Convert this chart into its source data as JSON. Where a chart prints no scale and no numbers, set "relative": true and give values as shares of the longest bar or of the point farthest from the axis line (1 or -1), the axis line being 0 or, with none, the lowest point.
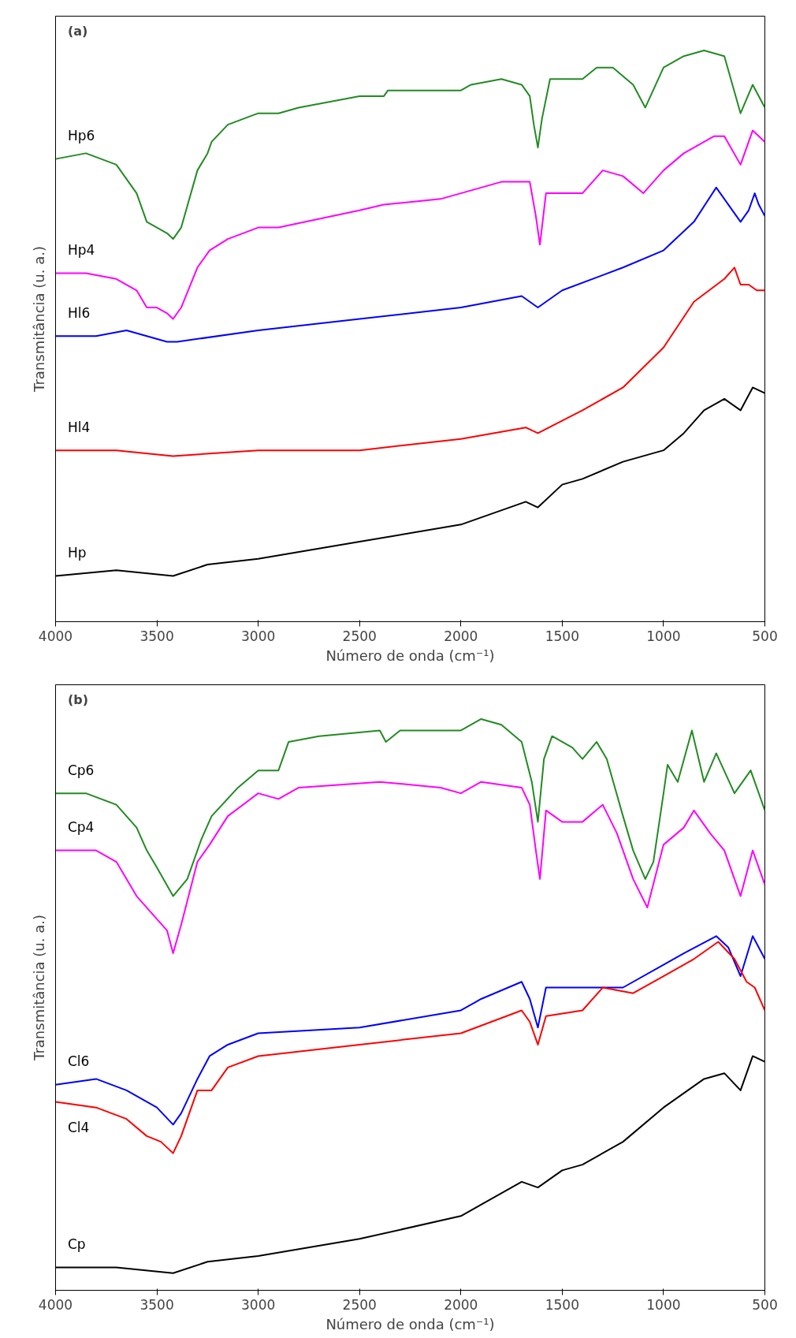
{
  "chart_data": [
    {
      "type": "line",
      "relative": true,
      "xlabel": "Número de onda (cm⁻¹)",
      "ylabel": "Transmitância (u. a.)",
      "annotations": [
        "(a)"
      ],
      "xlim": [
        4000,
        500
      ],
      "xticks": [
        4000,
        3500,
        3000,
        2500,
        2000,
        1500,
        1000,
        500
      ],
      "tick_labels": "x",
      "grid": false,
      "legend": false,
      "marker": "none",
      "line_style": "solid",
      "series": [
        {
          "name": "Hp6",
          "color": "#228b22",
          "x": [
            4000,
            3850,
            3700,
            3600,
            3550,
            3500,
            3450,
            3420,
            3380,
            3300,
            3250,
            3230,
            3150,
            3000,
            2900,
            2800,
            2500,
            2380,
            2360,
            2100,
            2000,
            1950,
            1800,
            1700,
            1660,
            1640,
            1620,
            1600,
            1560,
            1500,
            1400,
            1330,
            1250,
            1150,
            1090,
            1000,
            900,
            800,
            700,
            620,
            560,
            500
          ],
          "values": [
            0.81,
            0.82,
            0.8,
            0.75,
            0.7,
            0.69,
            0.68,
            0.67,
            0.69,
            0.79,
            0.82,
            0.84,
            0.87,
            0.89,
            0.89,
            0.9,
            0.92,
            0.92,
            0.93,
            0.93,
            0.93,
            0.94,
            0.95,
            0.94,
            0.92,
            0.87,
            0.83,
            0.88,
            0.95,
            0.95,
            0.95,
            0.97,
            0.97,
            0.94,
            0.9,
            0.97,
            0.99,
            1.0,
            0.99,
            0.89,
            0.94,
            0.9
          ]
        },
        {
          "name": "Hp4",
          "color": "#ff00ff",
          "x": [
            4000,
            3850,
            3700,
            3600,
            3550,
            3500,
            3450,
            3420,
            3380,
            3300,
            3240,
            3150,
            3000,
            2900,
            2500,
            2380,
            2100,
            2000,
            1800,
            1700,
            1660,
            1630,
            1610,
            1580,
            1500,
            1400,
            1300,
            1200,
            1100,
            1000,
            900,
            750,
            700,
            620,
            560,
            500
          ],
          "values": [
            0.61,
            0.61,
            0.6,
            0.58,
            0.55,
            0.55,
            0.54,
            0.53,
            0.55,
            0.62,
            0.65,
            0.67,
            0.69,
            0.69,
            0.72,
            0.73,
            0.74,
            0.75,
            0.77,
            0.77,
            0.77,
            0.71,
            0.66,
            0.75,
            0.75,
            0.75,
            0.79,
            0.78,
            0.75,
            0.79,
            0.82,
            0.85,
            0.85,
            0.8,
            0.86,
            0.84
          ]
        },
        {
          "name": "Hl6",
          "color": "#0000ff",
          "x": [
            4000,
            3800,
            3650,
            3550,
            3450,
            3400,
            3000,
            2500,
            2000,
            1700,
            1620,
            1500,
            1200,
            1000,
            850,
            740,
            680,
            620,
            580,
            550,
            530,
            500
          ],
          "values": [
            0.5,
            0.5,
            0.51,
            0.5,
            0.49,
            0.49,
            0.51,
            0.53,
            0.55,
            0.57,
            0.55,
            0.58,
            0.62,
            0.65,
            0.7,
            0.76,
            0.73,
            0.7,
            0.72,
            0.75,
            0.73,
            0.71
          ]
        },
        {
          "name": "Hl4",
          "color": "#ff0000",
          "x": [
            4000,
            3700,
            3420,
            3000,
            2500,
            2000,
            1680,
            1620,
            1400,
            1200,
            1000,
            850,
            700,
            650,
            620,
            580,
            540,
            500
          ],
          "values": [
            0.3,
            0.3,
            0.29,
            0.3,
            0.3,
            0.32,
            0.34,
            0.33,
            0.37,
            0.41,
            0.48,
            0.56,
            0.6,
            0.62,
            0.59,
            0.59,
            0.58,
            0.58
          ]
        },
        {
          "name": "Hp",
          "color": "#000000",
          "x": [
            4000,
            3700,
            3420,
            3250,
            3000,
            2500,
            2000,
            1680,
            1620,
            1500,
            1400,
            1200,
            1000,
            900,
            800,
            700,
            620,
            560,
            500
          ],
          "values": [
            0.08,
            0.09,
            0.08,
            0.1,
            0.11,
            0.14,
            0.17,
            0.21,
            0.2,
            0.24,
            0.25,
            0.28,
            0.3,
            0.33,
            0.37,
            0.39,
            0.37,
            0.41,
            0.4
          ]
        }
      ]
    },
    {
      "type": "line",
      "relative": true,
      "xlabel": "Número de onda (cm⁻¹)",
      "ylabel": "Transmitância (u. a.)",
      "annotations": [
        "(b)"
      ],
      "xlim": [
        4000,
        500
      ],
      "xticks": [
        4000,
        3500,
        3000,
        2500,
        2000,
        1500,
        1000,
        500
      ],
      "tick_labels": "x",
      "grid": false,
      "legend": false,
      "marker": "none",
      "line_style": "solid",
      "series": [
        {
          "name": "Cp6",
          "color": "#228b22",
          "x": [
            4000,
            3850,
            3700,
            3600,
            3550,
            3500,
            3420,
            3350,
            3280,
            3230,
            3100,
            3000,
            2950,
            2900,
            2850,
            2700,
            2400,
            2370,
            2300,
            2000,
            1900,
            1800,
            1700,
            1650,
            1620,
            1590,
            1550,
            1450,
            1400,
            1330,
            1280,
            1200,
            1150,
            1090,
            1050,
            1000,
            980,
            930,
            860,
            800,
            740,
            650,
            570,
            500
          ],
          "values": [
            0.87,
            0.87,
            0.85,
            0.81,
            0.77,
            0.74,
            0.69,
            0.72,
            0.79,
            0.83,
            0.88,
            0.91,
            0.91,
            0.91,
            0.96,
            0.97,
            0.98,
            0.96,
            0.98,
            0.98,
            1.0,
            0.99,
            0.96,
            0.89,
            0.82,
            0.93,
            0.97,
            0.95,
            0.93,
            0.96,
            0.93,
            0.83,
            0.77,
            0.72,
            0.75,
            0.87,
            0.92,
            0.89,
            0.98,
            0.89,
            0.94,
            0.87,
            0.91,
            0.84
          ]
        },
        {
          "name": "Cp4",
          "color": "#ff00ff",
          "x": [
            4000,
            3800,
            3700,
            3600,
            3550,
            3500,
            3450,
            3420,
            3380,
            3300,
            3240,
            3150,
            3000,
            2900,
            2800,
            2400,
            2100,
            2000,
            1900,
            1700,
            1660,
            1630,
            1610,
            1580,
            1500,
            1400,
            1300,
            1230,
            1150,
            1080,
            1000,
            900,
            850,
            770,
            700,
            620,
            560,
            500
          ],
          "values": [
            0.77,
            0.77,
            0.75,
            0.69,
            0.67,
            0.65,
            0.63,
            0.59,
            0.64,
            0.75,
            0.78,
            0.83,
            0.87,
            0.86,
            0.88,
            0.89,
            0.88,
            0.87,
            0.89,
            0.88,
            0.85,
            0.77,
            0.72,
            0.84,
            0.82,
            0.82,
            0.85,
            0.8,
            0.72,
            0.67,
            0.78,
            0.81,
            0.84,
            0.8,
            0.77,
            0.69,
            0.77,
            0.71
          ]
        },
        {
          "name": "Cl6",
          "color": "#0000ff",
          "x": [
            4000,
            3800,
            3650,
            3550,
            3500,
            3420,
            3380,
            3300,
            3240,
            3150,
            3000,
            2500,
            2000,
            1900,
            1700,
            1660,
            1620,
            1580,
            1400,
            1200,
            1000,
            900,
            740,
            680,
            620,
            560,
            500
          ],
          "values": [
            0.36,
            0.37,
            0.35,
            0.33,
            0.32,
            0.29,
            0.31,
            0.37,
            0.41,
            0.43,
            0.45,
            0.46,
            0.49,
            0.51,
            0.54,
            0.51,
            0.46,
            0.53,
            0.53,
            0.53,
            0.57,
            0.59,
            0.62,
            0.6,
            0.55,
            0.62,
            0.58
          ]
        },
        {
          "name": "Cl4",
          "color": "#ff0000",
          "x": [
            4000,
            3800,
            3650,
            3550,
            3480,
            3420,
            3380,
            3300,
            3230,
            3150,
            3000,
            2500,
            2000,
            1700,
            1660,
            1620,
            1580,
            1400,
            1300,
            1150,
            1000,
            850,
            730,
            650,
            590,
            550,
            500
          ],
          "values": [
            0.33,
            0.32,
            0.3,
            0.27,
            0.26,
            0.24,
            0.27,
            0.35,
            0.35,
            0.39,
            0.41,
            0.43,
            0.45,
            0.49,
            0.47,
            0.43,
            0.48,
            0.49,
            0.53,
            0.52,
            0.55,
            0.58,
            0.61,
            0.58,
            0.54,
            0.53,
            0.49
          ]
        },
        {
          "name": "Cp",
          "color": "#000000",
          "x": [
            4000,
            3700,
            3420,
            3250,
            3000,
            2500,
            2000,
            1700,
            1620,
            1500,
            1400,
            1200,
            1000,
            800,
            700,
            620,
            560,
            500
          ],
          "values": [
            0.04,
            0.04,
            0.03,
            0.05,
            0.06,
            0.09,
            0.13,
            0.19,
            0.18,
            0.21,
            0.22,
            0.26,
            0.32,
            0.37,
            0.38,
            0.35,
            0.41,
            0.4
          ]
        }
      ]
    }
  ]
}
